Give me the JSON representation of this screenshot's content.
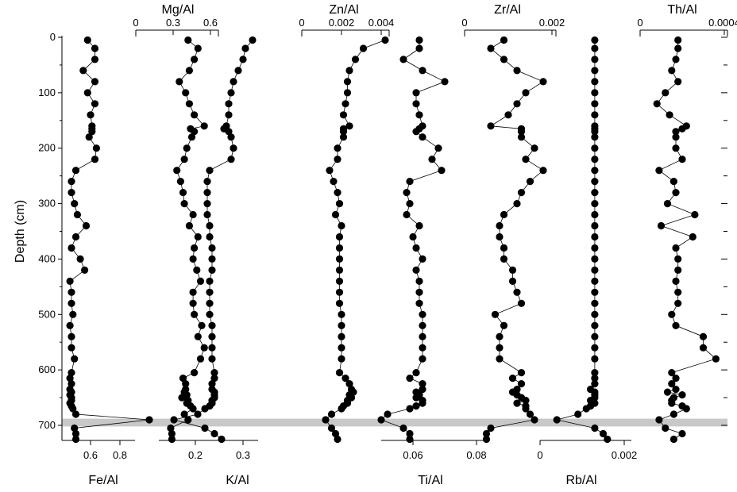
{
  "chart_data": {
    "type": "scatter",
    "layout_note": "depth profile of element/Al ratios; markers joined by thin lines",
    "yaxis": {
      "label": "Depth (cm)",
      "ticks": [
        0,
        100,
        200,
        300,
        400,
        500,
        600,
        700
      ],
      "range": [
        0,
        730
      ],
      "inverted": true
    },
    "highlight_band": {
      "depth_range": [
        688,
        702
      ]
    },
    "depths": [
      5,
      20,
      40,
      60,
      80,
      100,
      120,
      140,
      160,
      165,
      170,
      180,
      200,
      220,
      240,
      260,
      280,
      300,
      320,
      340,
      360,
      380,
      400,
      420,
      440,
      460,
      480,
      500,
      520,
      540,
      560,
      580,
      605,
      615,
      625,
      635,
      640,
      645,
      650,
      655,
      660,
      665,
      670,
      680,
      690,
      705,
      715,
      725
    ],
    "series": [
      {
        "name": "Fe/Al",
        "axis_position": "bottom",
        "ticks": [
          "0.6",
          "0.8"
        ],
        "values": [
          0.58,
          0.63,
          0.63,
          0.55,
          0.63,
          0.58,
          0.63,
          0.6,
          0.61,
          0.61,
          0.61,
          0.59,
          0.64,
          0.63,
          0.5,
          0.47,
          0.47,
          0.49,
          0.51,
          0.57,
          0.5,
          0.47,
          0.53,
          0.56,
          0.46,
          0.47,
          0.47,
          0.48,
          0.46,
          0.47,
          0.47,
          0.49,
          0.47,
          0.46,
          0.47,
          0.46,
          0.47,
          0.46,
          0.47,
          0.47,
          0.46,
          0.47,
          0.48,
          0.5,
          1.0,
          0.49,
          0.5,
          0.5
        ]
      },
      {
        "name": "Mg/Al",
        "axis_position": "top",
        "ticks": [
          "0",
          "0.3",
          "0.6"
        ],
        "values": [
          0.42,
          0.5,
          0.47,
          0.43,
          0.35,
          0.4,
          0.43,
          0.47,
          0.55,
          0.44,
          0.47,
          0.45,
          0.41,
          0.39,
          0.33,
          0.36,
          0.38,
          0.39,
          0.46,
          0.43,
          0.5,
          0.47,
          0.46,
          0.49,
          0.52,
          0.46,
          0.46,
          0.47,
          0.53,
          0.5,
          0.55,
          0.52,
          0.47,
          0.38,
          0.4,
          0.4,
          0.39,
          0.41,
          0.37,
          0.42,
          0.41,
          0.44,
          0.46,
          0.39,
          0.42,
          0.28,
          0.29,
          0.29
        ]
      },
      {
        "name": "K/Al",
        "axis_position": "bottom",
        "ticks": [
          "0.2",
          "0.3"
        ],
        "values": [
          0.32,
          0.305,
          0.3,
          0.29,
          0.28,
          0.275,
          0.27,
          0.27,
          0.265,
          0.26,
          0.27,
          0.275,
          0.28,
          0.275,
          0.23,
          0.225,
          0.225,
          0.225,
          0.225,
          0.23,
          0.23,
          0.235,
          0.235,
          0.235,
          0.23,
          0.23,
          0.23,
          0.23,
          0.235,
          0.235,
          0.235,
          0.235,
          0.24,
          0.24,
          0.235,
          0.235,
          0.24,
          0.24,
          0.24,
          0.235,
          0.235,
          0.23,
          0.22,
          0.205,
          0.155,
          0.22,
          0.24,
          0.255
        ]
      },
      {
        "name": "Zn/Al",
        "axis_position": "top",
        "ticks": [
          "0",
          "0.002",
          "0.004"
        ],
        "values": [
          0.0042,
          0.0031,
          0.0027,
          0.0024,
          0.0023,
          0.0023,
          0.0022,
          0.0021,
          0.0024,
          0.0021,
          0.0021,
          0.0021,
          0.0018,
          0.0018,
          0.0014,
          0.0016,
          0.0018,
          0.0019,
          0.0017,
          0.002,
          0.0019,
          0.0019,
          0.0019,
          0.0019,
          0.0019,
          0.0019,
          0.0019,
          0.002,
          0.002,
          0.002,
          0.002,
          0.002,
          0.0019,
          0.0022,
          0.0024,
          0.0025,
          0.0026,
          0.0024,
          0.0025,
          0.0023,
          0.0023,
          0.0021,
          0.002,
          0.0015,
          0.0012,
          0.0015,
          0.0017,
          0.0018
        ]
      },
      {
        "name": "Ti/Al",
        "axis_position": "bottom",
        "ticks": [
          "0.06",
          "0.08"
        ],
        "values": [
          0.062,
          0.062,
          0.057,
          0.063,
          0.07,
          0.061,
          0.061,
          0.062,
          0.063,
          0.062,
          0.061,
          0.063,
          0.068,
          0.066,
          0.069,
          0.059,
          0.058,
          0.059,
          0.058,
          0.062,
          0.06,
          0.061,
          0.063,
          0.061,
          0.062,
          0.062,
          0.062,
          0.063,
          0.063,
          0.063,
          0.063,
          0.063,
          0.061,
          0.059,
          0.063,
          0.063,
          0.061,
          0.062,
          0.061,
          0.063,
          0.063,
          0.061,
          0.059,
          0.052,
          0.05,
          0.057,
          0.059,
          0.059
        ]
      },
      {
        "name": "Zr/Al",
        "axis_position": "top",
        "ticks": [
          "0",
          "0.002"
        ],
        "values": [
          0.0009,
          0.0006,
          0.0009,
          0.0012,
          0.0018,
          0.0014,
          0.0012,
          0.001,
          0.0006,
          0.0013,
          0.0013,
          0.0013,
          0.0016,
          0.0014,
          0.0018,
          0.0015,
          0.0013,
          0.0012,
          0.0009,
          0.0008,
          0.0008,
          0.0009,
          0.0009,
          0.0011,
          0.0011,
          0.0012,
          0.0013,
          0.0007,
          0.0009,
          0.0008,
          0.0008,
          0.0008,
          0.0013,
          0.0011,
          0.0013,
          0.0012,
          0.0011,
          0.0012,
          0.0013,
          0.0014,
          0.0012,
          0.0014,
          0.0014,
          0.0015,
          0.0016,
          0.0006,
          0.0005,
          0.0005
        ]
      },
      {
        "name": "Rb/Al",
        "axis_position": "bottom",
        "ticks": [
          "0",
          "0.002"
        ],
        "values": [
          0.0013,
          0.0013,
          0.0013,
          0.0013,
          0.0013,
          0.0013,
          0.0013,
          0.0013,
          0.0013,
          0.0013,
          0.0013,
          0.0013,
          0.0013,
          0.0013,
          0.0013,
          0.0013,
          0.0013,
          0.0013,
          0.0013,
          0.0013,
          0.0013,
          0.0013,
          0.0013,
          0.0013,
          0.0013,
          0.0013,
          0.0013,
          0.0013,
          0.0013,
          0.0013,
          0.0013,
          0.0013,
          0.0013,
          0.0013,
          0.0013,
          0.0012,
          0.0013,
          0.0013,
          0.0013,
          0.0012,
          0.0013,
          0.0012,
          0.0011,
          0.0009,
          0.0004,
          0.0013,
          0.0015,
          0.0016
        ]
      },
      {
        "name": "Th/Al",
        "axis_position": "top",
        "ticks": [
          "0",
          "0.0004"
        ],
        "values": [
          0.00018,
          0.00018,
          0.00017,
          0.00015,
          0.00018,
          0.00012,
          8e-05,
          0.00014,
          0.00022,
          0.0002,
          0.00017,
          0.00017,
          0.00017,
          0.0002,
          9e-05,
          0.00016,
          0.00017,
          0.00013,
          0.00026,
          0.0001,
          0.00025,
          0.00017,
          0.00018,
          0.00018,
          0.00017,
          0.00018,
          0.00018,
          0.00015,
          0.00017,
          0.0003,
          0.0003,
          0.00036,
          0.00015,
          0.00017,
          0.00015,
          0.00017,
          0.00013,
          0.0002,
          0.00016,
          0.00015,
          0.00015,
          0.0002,
          0.00022,
          0.00016,
          9e-05,
          0.00012,
          0.0002,
          0.00016
        ]
      }
    ]
  }
}
